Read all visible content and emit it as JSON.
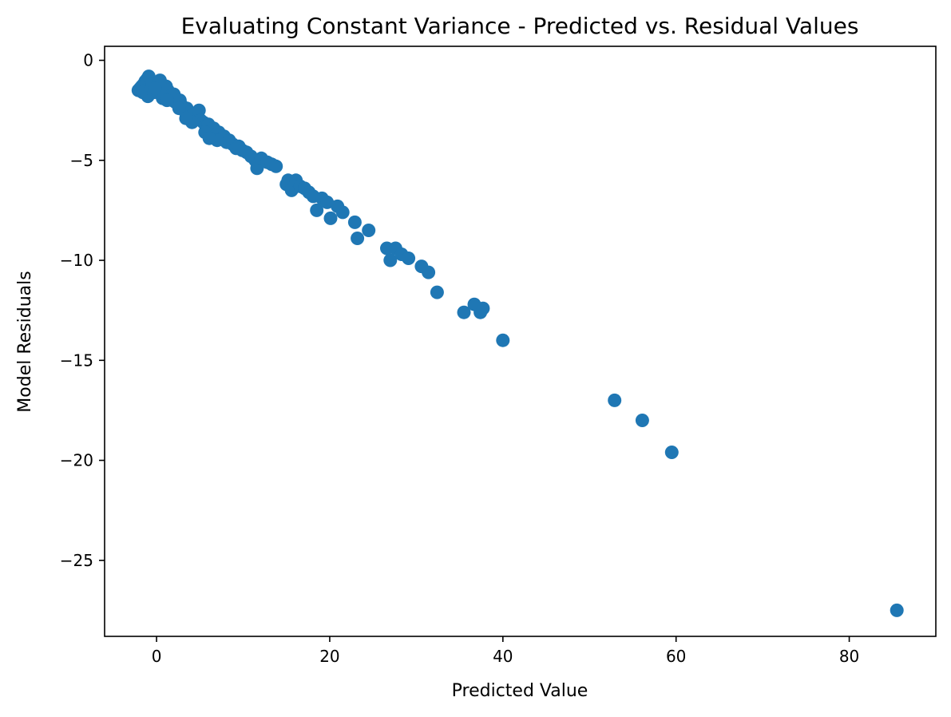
{
  "chart_data": {
    "type": "scatter",
    "title": "Evaluating Constant Variance - Predicted vs. Residual Values",
    "xlabel": "Predicted Value",
    "ylabel": "Model Residuals",
    "xlim": [
      -6,
      90
    ],
    "ylim": [
      -28.8,
      0.7
    ],
    "xticks": [
      0,
      20,
      40,
      60,
      80
    ],
    "yticks": [
      0,
      -5,
      -10,
      -15,
      -20,
      -25
    ],
    "xtick_labels": [
      "0",
      "20",
      "40",
      "60",
      "80"
    ],
    "ytick_labels": [
      "0",
      "−5",
      "−10",
      "−15",
      "−20",
      "−25"
    ],
    "grid": false,
    "marker_color": "#1f77b4",
    "series": [
      {
        "points": [
          [
            -2.1,
            -1.5
          ],
          [
            -1.9,
            -1.4
          ],
          [
            -1.7,
            -1.3
          ],
          [
            -1.5,
            -1.2
          ],
          [
            -1.3,
            -1.05
          ],
          [
            -1.1,
            -0.95
          ],
          [
            -0.9,
            -0.8
          ],
          [
            -1.6,
            -1.6
          ],
          [
            -1.2,
            -1.5
          ],
          [
            -1.0,
            -1.8
          ],
          [
            -0.7,
            -1.3
          ],
          [
            -0.5,
            -1.2
          ],
          [
            -0.3,
            -1.6
          ],
          [
            -0.1,
            -1.5
          ],
          [
            0.1,
            -1.4
          ],
          [
            0.3,
            -1.3
          ],
          [
            0.5,
            -1.7
          ],
          [
            0.7,
            -1.9
          ],
          [
            0.9,
            -1.6
          ],
          [
            1.1,
            -1.3
          ],
          [
            1.3,
            -1.5
          ],
          [
            1.5,
            -1.8
          ],
          [
            1.8,
            -2.0
          ],
          [
            2.0,
            -1.7
          ],
          [
            2.2,
            -2.1
          ],
          [
            2.5,
            -2.2
          ],
          [
            2.7,
            -2.0
          ],
          [
            3.0,
            -2.3
          ],
          [
            3.2,
            -2.5
          ],
          [
            3.5,
            -2.4
          ],
          [
            3.8,
            -2.6
          ],
          [
            4.0,
            -2.8
          ],
          [
            4.3,
            -2.7
          ],
          [
            4.6,
            -2.9
          ],
          [
            4.9,
            -2.5
          ],
          [
            5.1,
            -3.0
          ],
          [
            5.4,
            -3.1
          ],
          [
            5.7,
            -3.3
          ],
          [
            6.0,
            -3.2
          ],
          [
            6.3,
            -3.5
          ],
          [
            6.6,
            -3.4
          ],
          [
            6.9,
            -3.7
          ],
          [
            7.2,
            -3.6
          ],
          [
            7.5,
            -3.9
          ],
          [
            7.8,
            -3.8
          ],
          [
            8.1,
            -4.1
          ],
          [
            8.4,
            -4.0
          ],
          [
            8.8,
            -4.2
          ],
          [
            9.2,
            -4.4
          ],
          [
            9.5,
            -4.3
          ],
          [
            9.9,
            -4.5
          ],
          [
            10.4,
            -4.6
          ],
          [
            10.9,
            -4.8
          ],
          [
            11.4,
            -5.0
          ],
          [
            11.6,
            -5.4
          ],
          [
            12.1,
            -4.9
          ],
          [
            12.8,
            -5.1
          ],
          [
            13.3,
            -5.2
          ],
          [
            13.8,
            -5.3
          ],
          [
            15.0,
            -6.2
          ],
          [
            15.2,
            -6.0
          ],
          [
            15.6,
            -6.5
          ],
          [
            16.1,
            -6.0
          ],
          [
            16.6,
            -6.3
          ],
          [
            17.1,
            -6.4
          ],
          [
            17.6,
            -6.6
          ],
          [
            18.1,
            -6.8
          ],
          [
            18.5,
            -7.5
          ],
          [
            19.1,
            -6.9
          ],
          [
            19.7,
            -7.1
          ],
          [
            20.1,
            -7.9
          ],
          [
            20.9,
            -7.3
          ],
          [
            21.5,
            -7.6
          ],
          [
            22.9,
            -8.1
          ],
          [
            23.2,
            -8.9
          ],
          [
            24.5,
            -8.5
          ],
          [
            26.6,
            -9.4
          ],
          [
            27.0,
            -10.0
          ],
          [
            27.6,
            -9.4
          ],
          [
            28.3,
            -9.7
          ],
          [
            29.1,
            -9.9
          ],
          [
            30.6,
            -10.3
          ],
          [
            31.4,
            -10.6
          ],
          [
            32.4,
            -11.6
          ],
          [
            35.5,
            -12.6
          ],
          [
            36.7,
            -12.2
          ],
          [
            37.4,
            -12.6
          ],
          [
            37.7,
            -12.4
          ],
          [
            40.0,
            -14.0
          ],
          [
            52.9,
            -17.0
          ],
          [
            56.1,
            -18.0
          ],
          [
            59.5,
            -19.6
          ],
          [
            85.5,
            -27.5
          ],
          [
            1.2,
            -2.0
          ],
          [
            2.6,
            -2.4
          ],
          [
            4.1,
            -3.1
          ],
          [
            5.6,
            -3.6
          ],
          [
            7.0,
            -4.0
          ],
          [
            0.4,
            -1.0
          ],
          [
            -0.2,
            -1.4
          ],
          [
            3.4,
            -2.9
          ],
          [
            6.1,
            -3.9
          ]
        ]
      }
    ]
  }
}
